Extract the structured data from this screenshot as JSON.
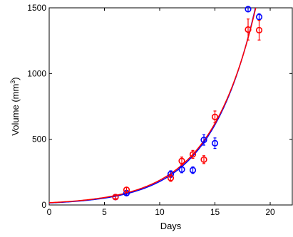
{
  "chart_data": {
    "type": "scatter",
    "title": "",
    "xlabel": "Days",
    "ylabel": "Volume (mm",
    "ylabel_superscript": "3",
    "ylabel_close": ")",
    "xlim": [
      0,
      22
    ],
    "ylim": [
      0,
      1500
    ],
    "xticks": [
      0,
      5,
      10,
      15,
      20
    ],
    "yticks": [
      0,
      500,
      1000,
      1500
    ],
    "xtick_labels": [
      "0",
      "5",
      "10",
      "15",
      "20"
    ],
    "ytick_labels": [
      "0",
      "500",
      "1000",
      "1500"
    ],
    "grid": false,
    "legend": "none",
    "series": [
      {
        "color": "#0000ff",
        "marker": "open-circle",
        "points": [
          {
            "x": 6,
            "y": 60,
            "err": 12
          },
          {
            "x": 7,
            "y": 90,
            "err": 15
          },
          {
            "x": 11,
            "y": 235,
            "err": 25
          },
          {
            "x": 12,
            "y": 270,
            "err": 25
          },
          {
            "x": 13,
            "y": 265,
            "err": 25
          },
          {
            "x": 14,
            "y": 495,
            "err": 40
          },
          {
            "x": 15,
            "y": 470,
            "err": 40
          },
          {
            "x": 18,
            "y": 1490,
            "err": 20
          },
          {
            "x": 19,
            "y": 1430,
            "err": 25
          }
        ],
        "fit": {
          "model": "exponential",
          "a": 15.3,
          "b": 0.2457,
          "x_start": 0
        }
      },
      {
        "color": "#ff0000",
        "marker": "open-circle",
        "points": [
          {
            "x": 6,
            "y": 60,
            "err": 12
          },
          {
            "x": 7,
            "y": 115,
            "err": 20
          },
          {
            "x": 11,
            "y": 205,
            "err": 25
          },
          {
            "x": 12,
            "y": 335,
            "err": 30
          },
          {
            "x": 13,
            "y": 385,
            "err": 30
          },
          {
            "x": 14,
            "y": 345,
            "err": 30
          },
          {
            "x": 15,
            "y": 670,
            "err": 45
          },
          {
            "x": 18,
            "y": 1335,
            "err": 80
          },
          {
            "x": 19,
            "y": 1330,
            "err": 75
          }
        ],
        "fit": {
          "model": "exponential",
          "a": 17.3,
          "b": 0.2387,
          "x_start": 0
        }
      }
    ]
  }
}
